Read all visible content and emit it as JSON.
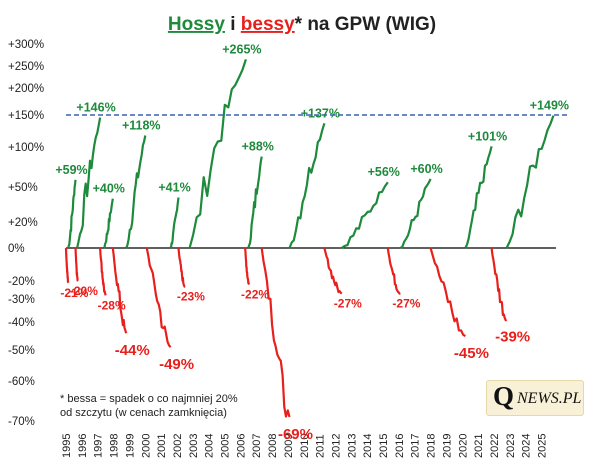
{
  "chart_data": {
    "type": "line",
    "title_parts": [
      {
        "text": "Hossy",
        "color": "#1e8a3c"
      },
      {
        "text": " i ",
        "color": "#222222"
      },
      {
        "text": "bessy",
        "color": "#e8201c"
      },
      {
        "text": "* na GPW (WIG)",
        "color": "#222222"
      }
    ],
    "y_ticks": [
      "+300%",
      "+250%",
      "+200%",
      "+150%",
      "+100%",
      "+50%",
      "+20%",
      "0%",
      "-20%",
      "-30%",
      "-40%",
      "-50%",
      "-60%",
      "-70%"
    ],
    "x_ticks": [
      "1995",
      "1996",
      "1997",
      "1998",
      "1999",
      "2000",
      "2001",
      "2002",
      "2003",
      "2004",
      "2005",
      "2006",
      "2007",
      "2008",
      "2009",
      "2010",
      "2011",
      "2012",
      "2013",
      "2014",
      "2015",
      "2016",
      "2017",
      "2018",
      "2019",
      "2020",
      "2021",
      "2022",
      "2023",
      "2024",
      "2025"
    ],
    "x_range": [
      1995,
      2025.9
    ],
    "reference_line": {
      "value": 150,
      "style": "dashed",
      "color": "#3a62b5"
    },
    "colors": {
      "bull": "#1e8a3c",
      "bear": "#e8201c"
    },
    "bull_markets": [
      {
        "start": 1995.15,
        "end": 1995.6,
        "peak": 59,
        "label": "+59%"
      },
      {
        "start": 1995.7,
        "end": 1997.15,
        "peak": 146,
        "label": "+146%"
      },
      {
        "start": 1997.4,
        "end": 1997.95,
        "peak": 40,
        "label": "+40%"
      },
      {
        "start": 1998.8,
        "end": 2000.0,
        "peak": 118,
        "label": "+118%"
      },
      {
        "start": 2001.6,
        "end": 2002.1,
        "peak": 41,
        "label": "+41%"
      },
      {
        "start": 2002.8,
        "end": 2006.35,
        "peak": 265,
        "label": "+265%"
      },
      {
        "start": 2006.5,
        "end": 2007.35,
        "peak": 88,
        "label": "+88%"
      },
      {
        "start": 2009.1,
        "end": 2011.3,
        "peak": 137,
        "label": "+137%"
      },
      {
        "start": 2012.4,
        "end": 2015.3,
        "peak": 56,
        "label": "+56%"
      },
      {
        "start": 2016.1,
        "end": 2018.0,
        "peak": 60,
        "label": "+60%"
      },
      {
        "start": 2020.2,
        "end": 2021.85,
        "peak": 101,
        "label": "+101%"
      },
      {
        "start": 2022.8,
        "end": 2025.75,
        "peak": 149,
        "label": "+149%"
      }
    ],
    "bear_markets": [
      {
        "start": 1995.0,
        "end": 1995.15,
        "trough": -21,
        "label": "-21%"
      },
      {
        "start": 1995.6,
        "end": 1995.75,
        "trough": -20,
        "label": "-20%"
      },
      {
        "start": 1997.15,
        "end": 1997.5,
        "trough": -28,
        "label": "-28%"
      },
      {
        "start": 1997.95,
        "end": 1998.8,
        "trough": -44,
        "label": "-44%"
      },
      {
        "start": 2000.1,
        "end": 2001.6,
        "trough": -49,
        "label": "-49%"
      },
      {
        "start": 2002.1,
        "end": 2002.5,
        "trough": -23,
        "label": "-23%"
      },
      {
        "start": 2006.3,
        "end": 2006.55,
        "trough": -22,
        "label": "-22%"
      },
      {
        "start": 2007.35,
        "end": 2009.1,
        "trough": -69,
        "label": "-69%"
      },
      {
        "start": 2011.3,
        "end": 2012.4,
        "trough": -27,
        "label": "-27%"
      },
      {
        "start": 2015.3,
        "end": 2016.1,
        "trough": -27,
        "label": "-27%"
      },
      {
        "start": 2018.0,
        "end": 2020.2,
        "trough": -45,
        "label": "-45%"
      },
      {
        "start": 2021.85,
        "end": 2022.8,
        "trough": -39,
        "label": "-39%"
      }
    ],
    "footnote": [
      "* bessa = spadek o co najmniej 20%",
      "od szczytu (w cenach zamknięcia)"
    ],
    "grid": false,
    "legend": "none"
  },
  "logo": {
    "q": "Q",
    "rest": "NEWS.PL"
  }
}
